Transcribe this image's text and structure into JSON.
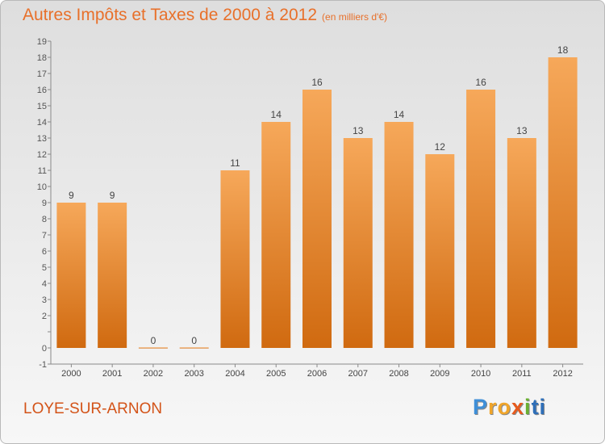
{
  "title": "Autres Impôts et Taxes de 2000 à 2012",
  "unit": "(en milliers d'€)",
  "commune": "LOYE-SUR-ARNON",
  "logo": {
    "text": "Proxiti",
    "parts": [
      "P",
      "ro",
      "x",
      "i",
      "ti"
    ]
  },
  "colors": {
    "bar_light": "#f6a85a",
    "bar_dark": "#d06a10",
    "title": "#e8702a",
    "commune": "#d35318"
  },
  "chart_data": {
    "type": "bar",
    "categories": [
      "2000",
      "2001",
      "2002",
      "2003",
      "2004",
      "2005",
      "2006",
      "2007",
      "2008",
      "2009",
      "2010",
      "2011",
      "2012"
    ],
    "values": [
      9,
      9,
      0,
      0,
      11,
      14,
      16,
      13,
      14,
      12,
      16,
      13,
      18
    ],
    "data_labels": [
      "9",
      "9",
      "0",
      "0",
      "11",
      "14",
      "16",
      "13",
      "14",
      "12",
      "16",
      "13",
      "18"
    ],
    "yticks": [
      -1,
      0,
      1,
      2,
      3,
      4,
      5,
      6,
      7,
      8,
      9,
      10,
      11,
      12,
      13,
      14,
      15,
      16,
      17,
      18,
      19
    ],
    "ytick_labels": [
      "-1",
      "0",
      "",
      "2",
      "3",
      "4",
      "5",
      "6",
      "7",
      "8",
      "9",
      "10",
      "11",
      "12",
      "13",
      "14",
      "15",
      "16",
      "17",
      "18",
      "19"
    ],
    "ylim": [
      -1,
      19
    ],
    "xlabel": "",
    "ylabel": "",
    "grid": false,
    "legend": "none"
  }
}
